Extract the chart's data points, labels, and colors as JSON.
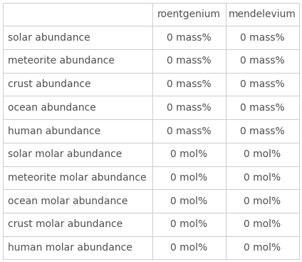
{
  "col_headers": [
    "",
    "roentgenium",
    "mendelevium"
  ],
  "rows": [
    [
      "solar abundance",
      "0 mass%",
      "0 mass%"
    ],
    [
      "meteorite abundance",
      "0 mass%",
      "0 mass%"
    ],
    [
      "crust abundance",
      "0 mass%",
      "0 mass%"
    ],
    [
      "ocean abundance",
      "0 mass%",
      "0 mass%"
    ],
    [
      "human abundance",
      "0 mass%",
      "0 mass%"
    ],
    [
      "solar molar abundance",
      "0 mol%",
      "0 mol%"
    ],
    [
      "meteorite molar abundance",
      "0 mol%",
      "0 mol%"
    ],
    [
      "ocean molar abundance",
      "0 mol%",
      "0 mol%"
    ],
    [
      "crust molar abundance",
      "0 mol%",
      "0 mol%"
    ],
    [
      "human molar abundance",
      "0 mol%",
      "0 mol%"
    ]
  ],
  "background_color": "#ffffff",
  "header_text_color": "#505050",
  "row_text_color_left": "#505050",
  "row_text_color_data": "#505050",
  "line_color": "#cccccc",
  "header_font_size": 10,
  "row_font_size": 10,
  "fig_width": 4.24,
  "fig_height": 3.67,
  "dpi": 100
}
